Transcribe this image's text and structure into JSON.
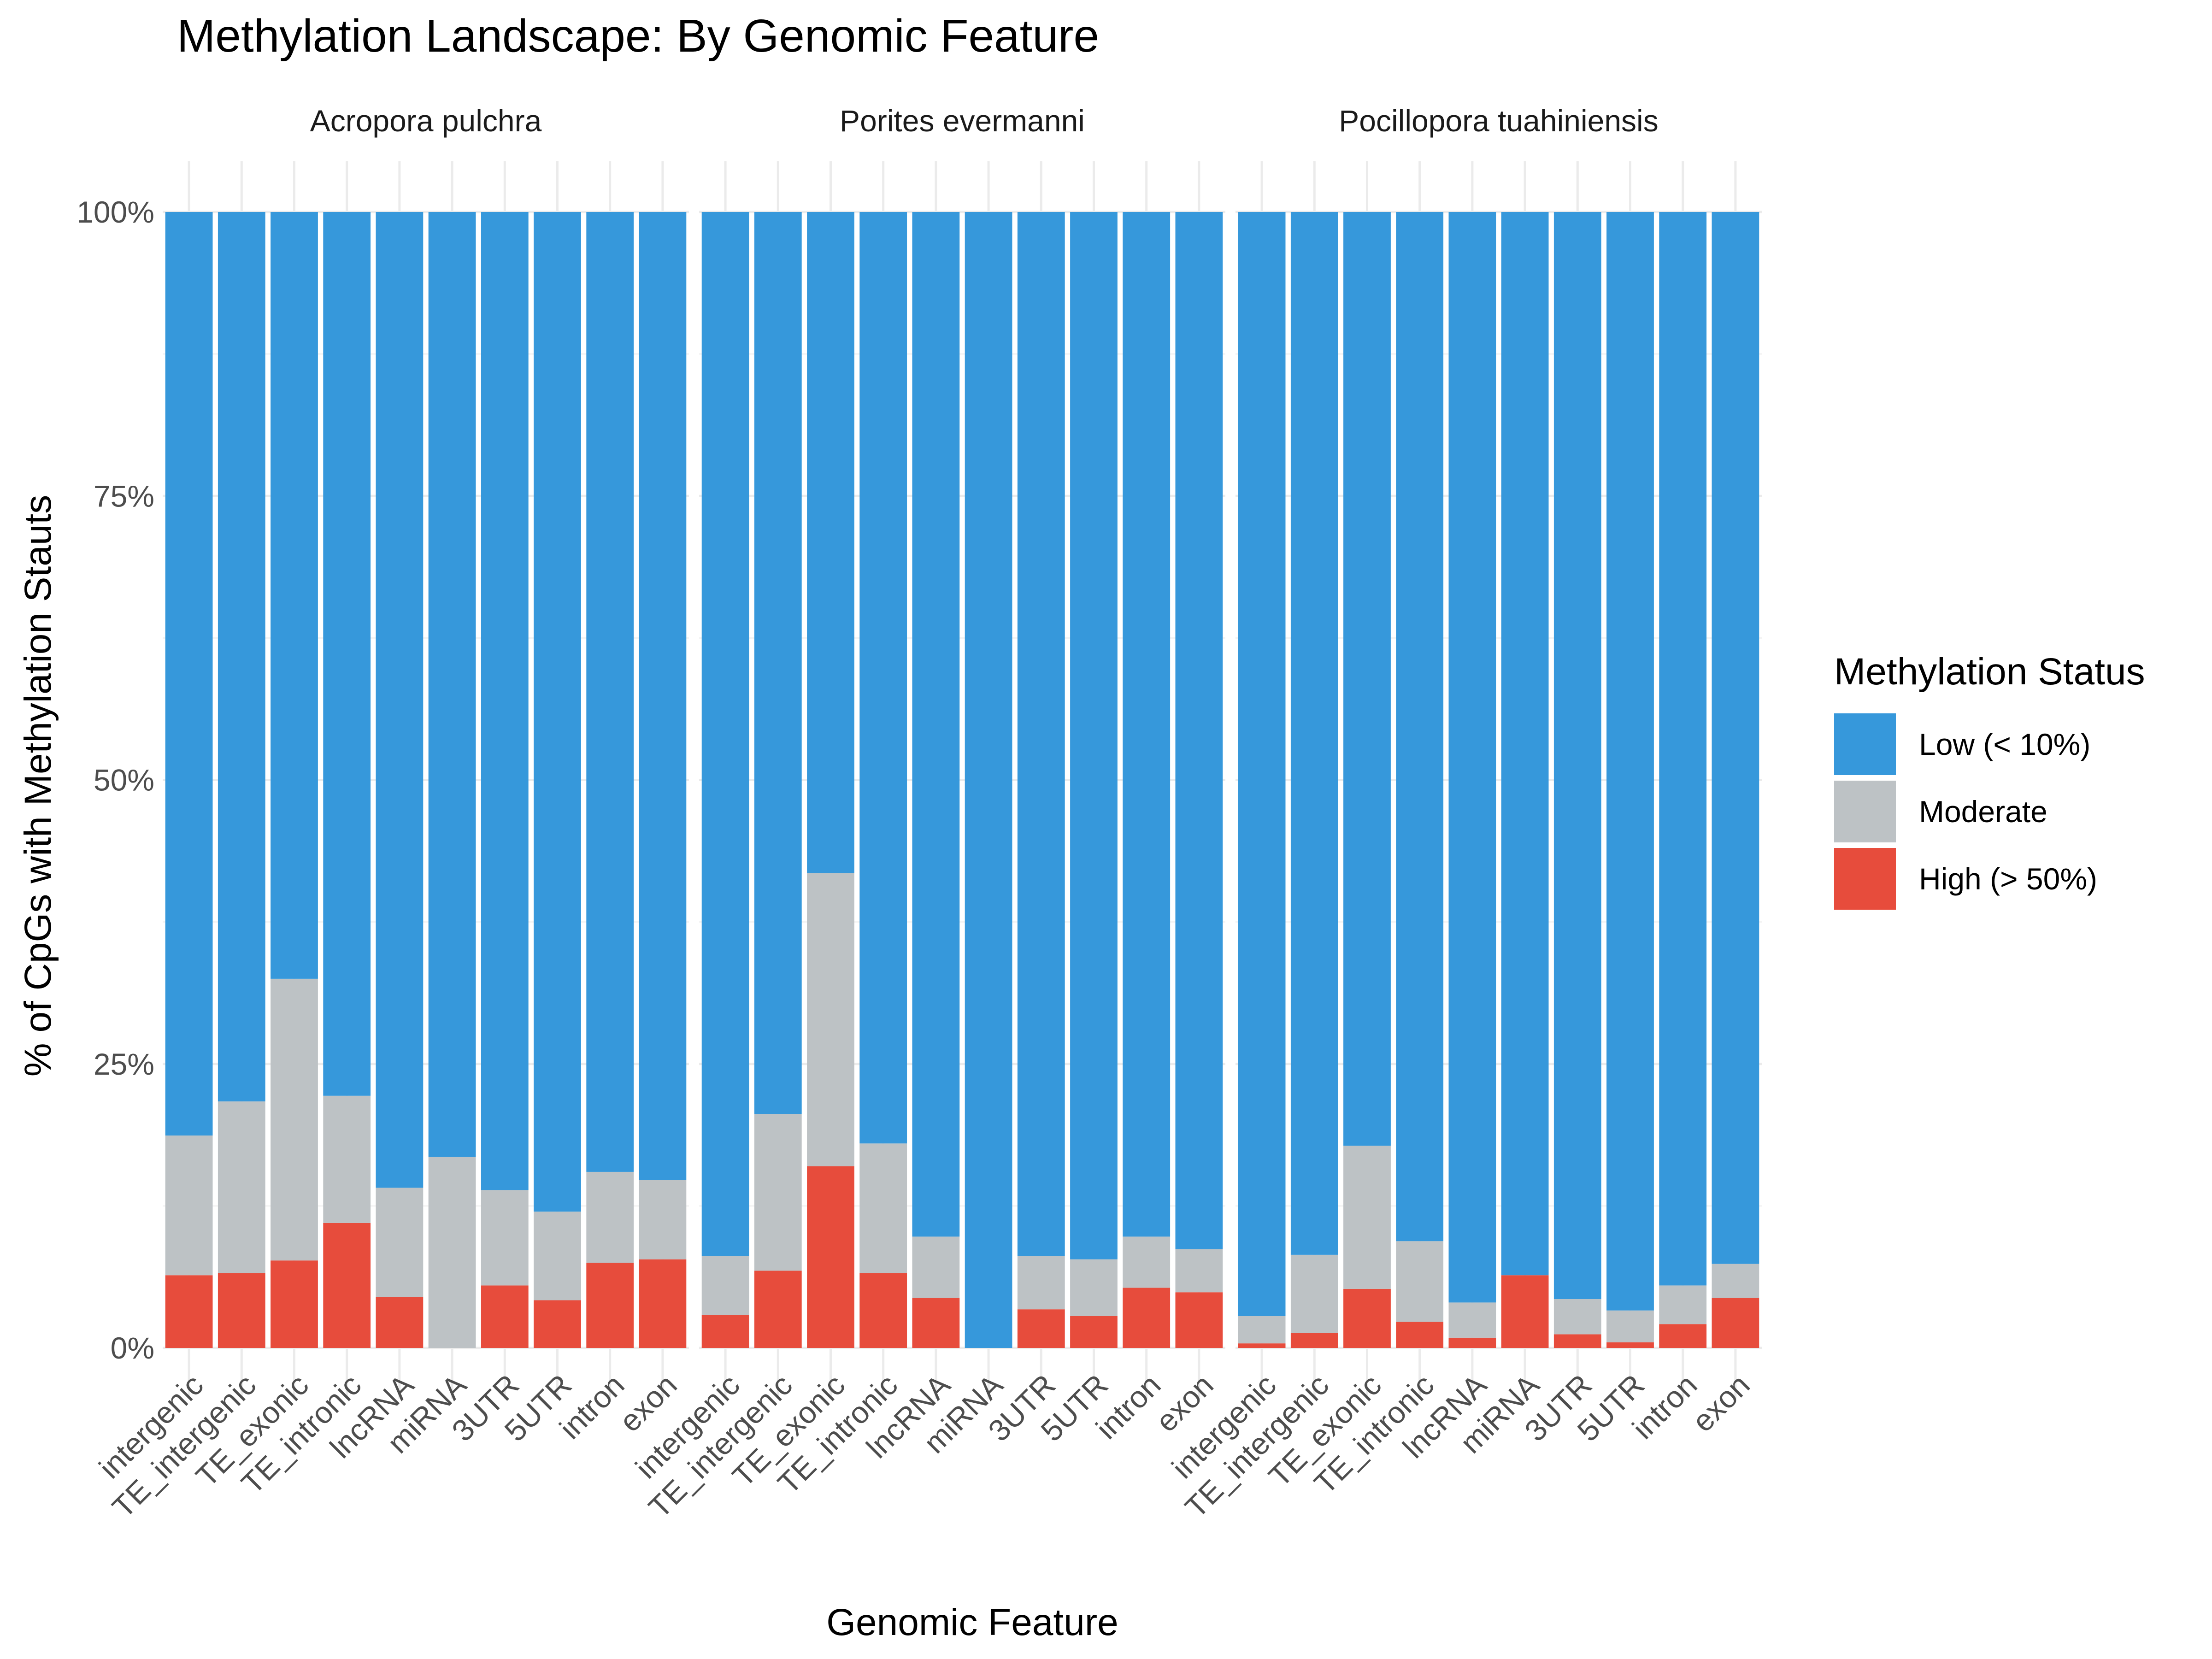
{
  "chart_data": {
    "type": "bar",
    "stacking": "percent",
    "title": "Methylation Landscape: By Genomic Feature",
    "xlabel": "Genomic Feature",
    "ylabel": "% of CpGs with Methylation Stauts",
    "ylim": [
      0,
      100
    ],
    "y_ticks": [
      "0%",
      "25%",
      "50%",
      "75%",
      "100%"
    ],
    "y_tick_values": [
      0,
      25,
      50,
      75,
      100
    ],
    "grid": true,
    "legend": {
      "title": "Methylation Status",
      "position": "right",
      "entries": [
        {
          "name": "Low (< 10%)",
          "color": "#3698db"
        },
        {
          "name": "Moderate",
          "color": "#bdc2c5"
        },
        {
          "name": "High (> 50%)",
          "color": "#e74c3c"
        }
      ]
    },
    "categories": [
      "intergenic",
      "TE_intergenic",
      "TE_exonic",
      "TE_intronic",
      "lncRNA",
      "miRNA",
      "3UTR",
      "5UTR",
      "intron",
      "exon"
    ],
    "panels": [
      {
        "name": "Acropora pulchra",
        "series": [
          {
            "name": "High (> 50%)",
            "values": [
              6.4,
              6.6,
              7.7,
              11.0,
              4.5,
              0.0,
              5.5,
              4.2,
              7.5,
              7.8
            ]
          },
          {
            "name": "Moderate",
            "values": [
              12.3,
              15.1,
              24.8,
              11.2,
              9.6,
              16.8,
              8.4,
              7.8,
              8.0,
              7.0
            ]
          },
          {
            "name": "Low (< 10%)",
            "values": [
              81.3,
              78.3,
              67.5,
              77.8,
              85.9,
              83.2,
              86.1,
              88.0,
              84.5,
              85.2
            ]
          }
        ]
      },
      {
        "name": "Porites evermanni",
        "series": [
          {
            "name": "High (> 50%)",
            "values": [
              2.9,
              6.8,
              16.0,
              6.6,
              4.4,
              0.0,
              3.4,
              2.8,
              5.3,
              4.9
            ]
          },
          {
            "name": "Moderate",
            "values": [
              5.2,
              13.8,
              25.8,
              11.4,
              5.4,
              0.0,
              4.7,
              5.0,
              4.5,
              3.8
            ]
          },
          {
            "name": "Low (< 10%)",
            "values": [
              91.9,
              79.4,
              58.2,
              82.0,
              90.2,
              100.0,
              91.9,
              92.2,
              90.2,
              91.3
            ]
          }
        ]
      },
      {
        "name": "Pocillopora tuahiniensis",
        "series": [
          {
            "name": "High (> 50%)",
            "values": [
              0.4,
              1.3,
              5.2,
              2.3,
              0.9,
              6.4,
              1.2,
              0.5,
              2.1,
              4.4
            ]
          },
          {
            "name": "Moderate",
            "values": [
              2.4,
              6.9,
              12.6,
              7.1,
              3.1,
              0.0,
              3.1,
              2.8,
              3.4,
              3.0
            ]
          },
          {
            "name": "Low (< 10%)",
            "values": [
              97.2,
              91.8,
              82.2,
              90.6,
              96.0,
              93.6,
              95.7,
              96.7,
              94.5,
              92.6
            ]
          }
        ]
      }
    ]
  }
}
